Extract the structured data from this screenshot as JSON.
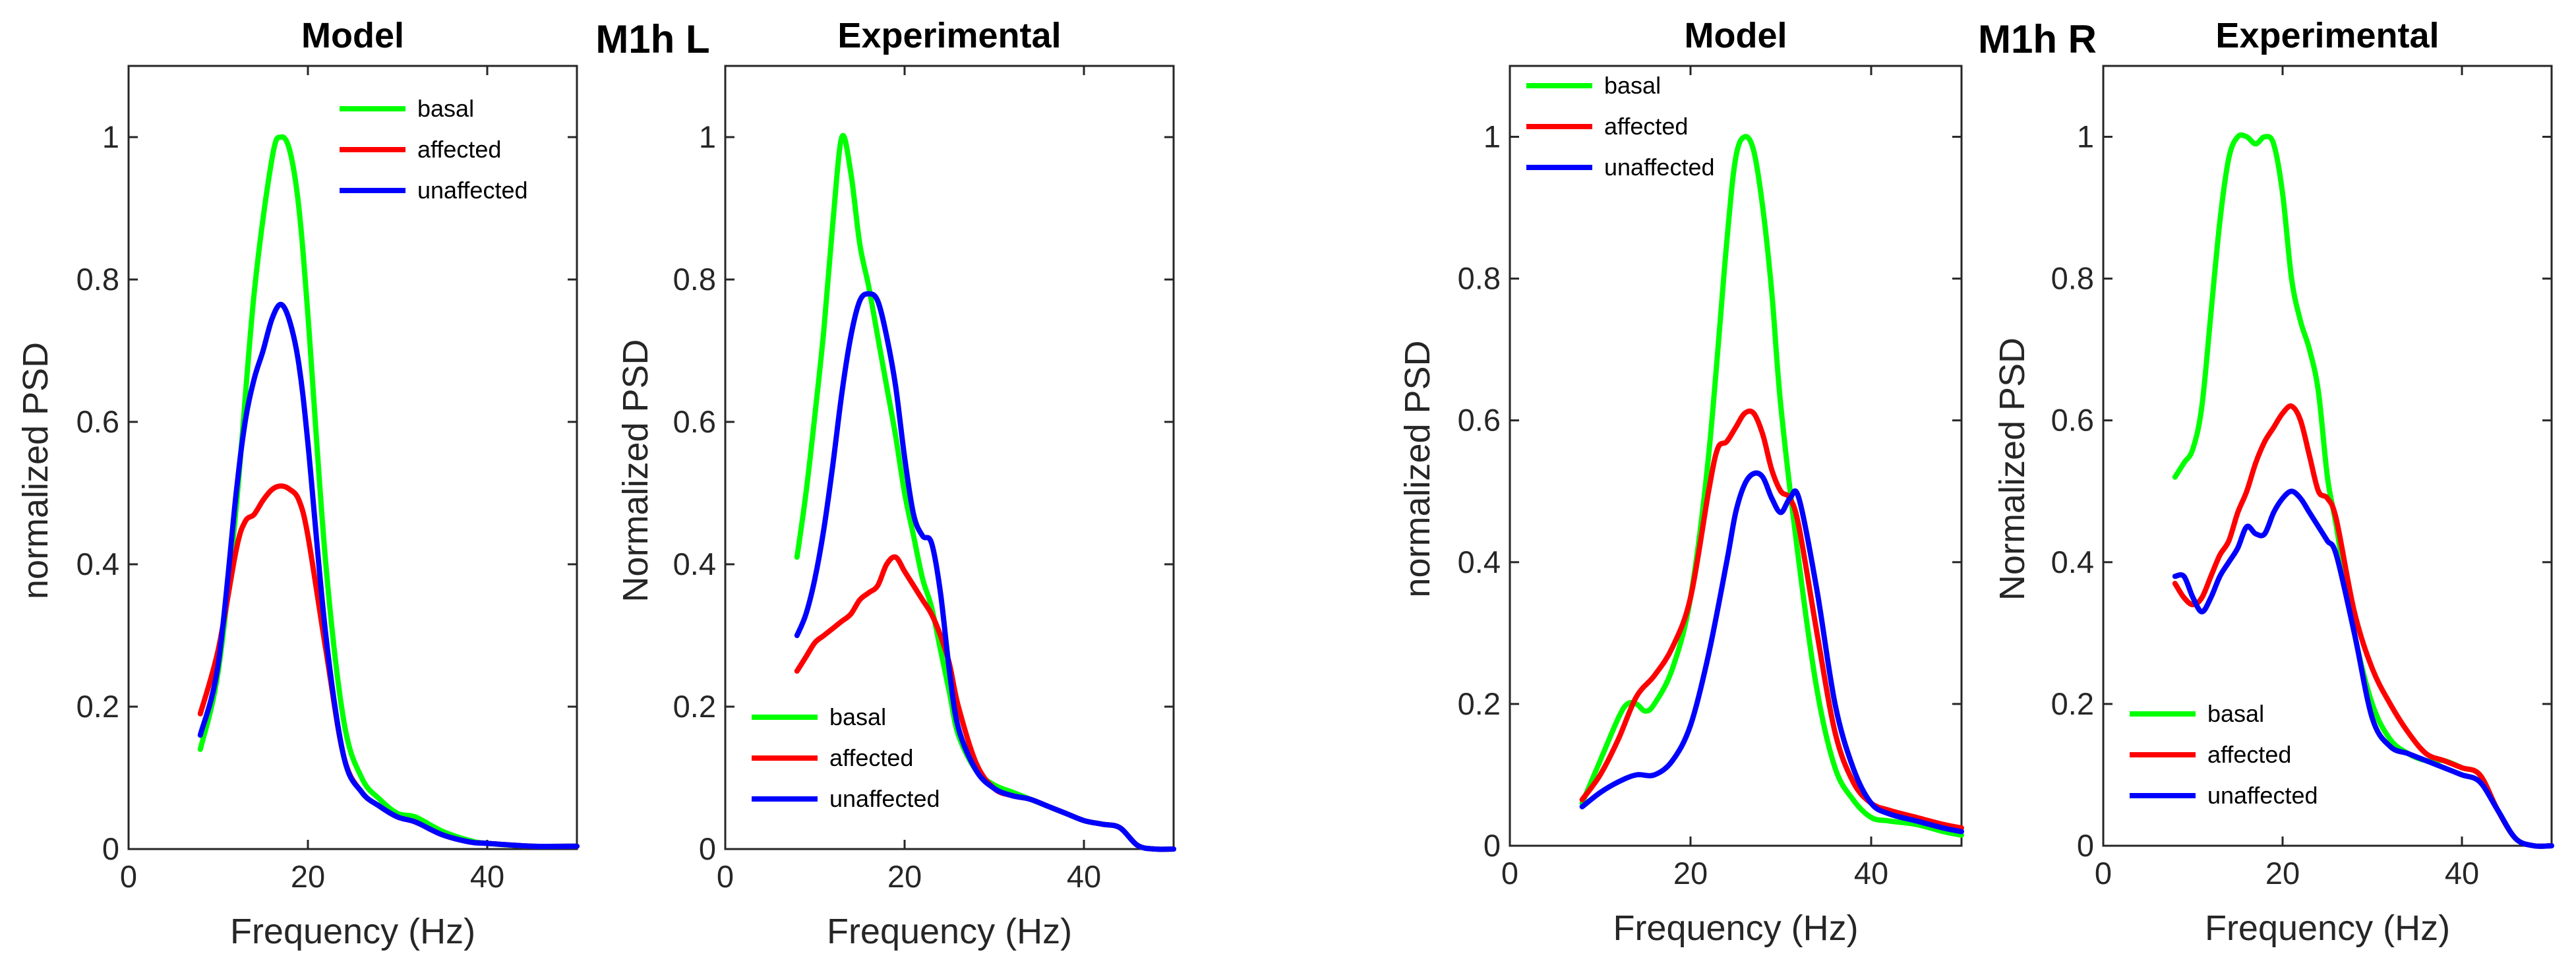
{
  "colors": {
    "basal": "#00ff00",
    "affected": "#ff0000",
    "unaffected": "#0000ff"
  },
  "group_titles": [
    {
      "text": "M1h L"
    },
    {
      "text": "M1h R"
    }
  ],
  "chart_data": [
    {
      "type": "line",
      "title": "Model",
      "xlabel": "Frequency (Hz)",
      "ylabel": "normalized PSD",
      "xlim": [
        0,
        50
      ],
      "ylim": [
        0,
        1.1
      ],
      "xticks": [
        "0",
        "20",
        "40"
      ],
      "yticks": [
        "0",
        "0.2",
        "0.4",
        "0.6",
        "0.8",
        "1"
      ],
      "legend_position": "top-right",
      "series": [
        {
          "name": "basal",
          "x": [
            8,
            10,
            12,
            14,
            16,
            17,
            18,
            19,
            20,
            22,
            24,
            26,
            28,
            30,
            32,
            35,
            38,
            40,
            45,
            50
          ],
          "y": [
            0.14,
            0.25,
            0.48,
            0.78,
            0.97,
            1.0,
            0.98,
            0.9,
            0.75,
            0.4,
            0.18,
            0.1,
            0.07,
            0.05,
            0.045,
            0.025,
            0.012,
            0.008,
            0.004,
            0.004
          ]
        },
        {
          "name": "affected",
          "x": [
            8,
            10,
            12,
            13,
            14,
            15,
            16,
            17,
            18,
            19,
            20,
            22,
            24,
            26,
            28,
            30,
            32,
            35,
            38,
            40,
            45,
            50
          ],
          "y": [
            0.19,
            0.28,
            0.42,
            0.46,
            0.47,
            0.49,
            0.505,
            0.51,
            0.505,
            0.49,
            0.44,
            0.28,
            0.13,
            0.08,
            0.06,
            0.045,
            0.038,
            0.02,
            0.01,
            0.008,
            0.004,
            0.004
          ]
        },
        {
          "name": "unaffected",
          "x": [
            8,
            10,
            12,
            13,
            14,
            15,
            16,
            17,
            18,
            19,
            20,
            22,
            24,
            26,
            28,
            30,
            32,
            35,
            38,
            40,
            45,
            50
          ],
          "y": [
            0.16,
            0.26,
            0.5,
            0.6,
            0.66,
            0.7,
            0.745,
            0.765,
            0.74,
            0.68,
            0.57,
            0.3,
            0.13,
            0.08,
            0.06,
            0.045,
            0.038,
            0.02,
            0.01,
            0.008,
            0.004,
            0.004
          ]
        }
      ]
    },
    {
      "type": "line",
      "title": "Experimental",
      "xlabel": "Frequency (Hz)",
      "ylabel": "Normalized PSD",
      "xlim": [
        0,
        50
      ],
      "ylim": [
        0,
        1.1
      ],
      "xticks": [
        "0",
        "20",
        "40"
      ],
      "yticks": [
        "0",
        "0.2",
        "0.4",
        "0.6",
        "0.8",
        "1"
      ],
      "legend_position": "bottom-left",
      "series": [
        {
          "name": "basal",
          "x": [
            8,
            9,
            10,
            11,
            12,
            13,
            14,
            15,
            16,
            17,
            18,
            19,
            20,
            21,
            22,
            23,
            24,
            25,
            26,
            28,
            30,
            32,
            34,
            36,
            38,
            40,
            42,
            44,
            46,
            48,
            50
          ],
          "y": [
            0.41,
            0.5,
            0.61,
            0.73,
            0.88,
            1.0,
            0.95,
            0.85,
            0.79,
            0.72,
            0.65,
            0.58,
            0.5,
            0.44,
            0.38,
            0.34,
            0.28,
            0.22,
            0.16,
            0.11,
            0.09,
            0.08,
            0.07,
            0.06,
            0.05,
            0.04,
            0.035,
            0.03,
            0.005,
            0.0,
            0.0
          ]
        },
        {
          "name": "affected",
          "x": [
            8,
            9,
            10,
            11,
            12,
            13,
            14,
            15,
            16,
            17,
            18,
            19,
            20,
            21,
            22,
            23,
            24,
            25,
            26,
            28,
            30,
            32,
            34,
            36,
            38,
            40,
            42,
            44,
            46,
            48,
            50
          ],
          "y": [
            0.25,
            0.27,
            0.29,
            0.3,
            0.31,
            0.32,
            0.33,
            0.35,
            0.36,
            0.37,
            0.4,
            0.41,
            0.39,
            0.37,
            0.35,
            0.33,
            0.3,
            0.26,
            0.2,
            0.12,
            0.085,
            0.075,
            0.07,
            0.06,
            0.05,
            0.04,
            0.035,
            0.03,
            0.005,
            0.0,
            0.0
          ]
        },
        {
          "name": "unaffected",
          "x": [
            8,
            9,
            10,
            11,
            12,
            13,
            14,
            15,
            16,
            17,
            18,
            19,
            20,
            21,
            22,
            23,
            24,
            25,
            26,
            28,
            30,
            32,
            34,
            36,
            38,
            40,
            42,
            44,
            46,
            48,
            50
          ],
          "y": [
            0.3,
            0.33,
            0.38,
            0.45,
            0.54,
            0.64,
            0.72,
            0.77,
            0.78,
            0.77,
            0.72,
            0.65,
            0.55,
            0.47,
            0.44,
            0.43,
            0.36,
            0.25,
            0.17,
            0.11,
            0.085,
            0.075,
            0.07,
            0.06,
            0.05,
            0.04,
            0.035,
            0.03,
            0.005,
            0.0,
            0.0
          ]
        }
      ]
    },
    {
      "type": "line",
      "title": "Model",
      "xlabel": "Frequency (Hz)",
      "ylabel": "normalized PSD",
      "xlim": [
        0,
        50
      ],
      "ylim": [
        0,
        1.1
      ],
      "xticks": [
        "0",
        "20",
        "40"
      ],
      "yticks": [
        "0",
        "0.2",
        "0.4",
        "0.6",
        "0.8",
        "1"
      ],
      "legend_position": "top-left",
      "series": [
        {
          "name": "basal",
          "x": [
            8,
            10,
            12,
            13,
            14,
            15,
            16,
            18,
            20,
            22,
            24,
            25,
            26,
            27,
            28,
            29,
            30,
            32,
            34,
            36,
            38,
            40,
            42,
            45,
            48,
            50
          ],
          "y": [
            0.06,
            0.12,
            0.18,
            0.2,
            0.2,
            0.19,
            0.2,
            0.25,
            0.35,
            0.55,
            0.85,
            0.97,
            1.0,
            0.98,
            0.9,
            0.78,
            0.62,
            0.4,
            0.22,
            0.11,
            0.065,
            0.04,
            0.035,
            0.03,
            0.02,
            0.015
          ]
        },
        {
          "name": "affected",
          "x": [
            8,
            10,
            12,
            14,
            16,
            18,
            20,
            22,
            23,
            24,
            25,
            26,
            27,
            28,
            29,
            30,
            31,
            32,
            34,
            36,
            38,
            40,
            42,
            45,
            48,
            50
          ],
          "y": [
            0.065,
            0.1,
            0.15,
            0.21,
            0.24,
            0.28,
            0.35,
            0.5,
            0.56,
            0.57,
            0.59,
            0.61,
            0.61,
            0.58,
            0.53,
            0.5,
            0.49,
            0.45,
            0.3,
            0.16,
            0.09,
            0.06,
            0.05,
            0.04,
            0.03,
            0.025
          ]
        },
        {
          "name": "unaffected",
          "x": [
            8,
            10,
            12,
            14,
            16,
            18,
            20,
            22,
            24,
            25,
            26,
            27,
            28,
            29,
            30,
            31,
            32,
            34,
            36,
            38,
            40,
            42,
            45,
            48,
            50
          ],
          "y": [
            0.055,
            0.075,
            0.09,
            0.1,
            0.1,
            0.12,
            0.17,
            0.27,
            0.4,
            0.47,
            0.51,
            0.525,
            0.52,
            0.49,
            0.47,
            0.49,
            0.49,
            0.36,
            0.2,
            0.11,
            0.06,
            0.045,
            0.035,
            0.025,
            0.02
          ]
        }
      ]
    },
    {
      "type": "line",
      "title": "Experimental",
      "xlabel": "Frequency (Hz)",
      "ylabel": "Normalized PSD",
      "xlim": [
        0,
        50
      ],
      "ylim": [
        0,
        1.1
      ],
      "xticks": [
        "0",
        "20",
        "40"
      ],
      "yticks": [
        "0",
        "0.2",
        "0.4",
        "0.6",
        "0.8",
        "1"
      ],
      "legend_position": "bottom-left",
      "series": [
        {
          "name": "basal",
          "x": [
            8,
            9,
            10,
            11,
            12,
            13,
            14,
            15,
            16,
            17,
            18,
            19,
            20,
            21,
            22,
            23,
            24,
            25,
            26,
            28,
            30,
            32,
            34,
            36,
            38,
            40,
            42,
            44,
            46,
            48,
            50
          ],
          "y": [
            0.52,
            0.54,
            0.56,
            0.62,
            0.75,
            0.88,
            0.97,
            1.0,
            1.0,
            0.99,
            1.0,
            0.99,
            0.92,
            0.8,
            0.74,
            0.7,
            0.64,
            0.52,
            0.45,
            0.3,
            0.2,
            0.15,
            0.13,
            0.12,
            0.12,
            0.11,
            0.1,
            0.05,
            0.01,
            0.0,
            0.0
          ]
        },
        {
          "name": "affected",
          "x": [
            8,
            9,
            10,
            11,
            12,
            13,
            14,
            15,
            16,
            17,
            18,
            19,
            20,
            21,
            22,
            23,
            24,
            25,
            26,
            28,
            30,
            32,
            34,
            36,
            38,
            40,
            42,
            44,
            46,
            48,
            50
          ],
          "y": [
            0.37,
            0.35,
            0.34,
            0.35,
            0.38,
            0.41,
            0.43,
            0.47,
            0.5,
            0.54,
            0.57,
            0.59,
            0.61,
            0.62,
            0.6,
            0.55,
            0.5,
            0.49,
            0.46,
            0.33,
            0.25,
            0.2,
            0.16,
            0.13,
            0.12,
            0.11,
            0.1,
            0.05,
            0.01,
            0.0,
            0.0
          ]
        },
        {
          "name": "unaffected",
          "x": [
            8,
            9,
            10,
            11,
            12,
            13,
            14,
            15,
            16,
            17,
            18,
            19,
            20,
            21,
            22,
            23,
            24,
            25,
            26,
            28,
            30,
            32,
            34,
            36,
            38,
            40,
            42,
            44,
            46,
            48,
            50
          ],
          "y": [
            0.38,
            0.38,
            0.35,
            0.33,
            0.35,
            0.38,
            0.4,
            0.42,
            0.45,
            0.44,
            0.44,
            0.47,
            0.49,
            0.5,
            0.49,
            0.47,
            0.45,
            0.43,
            0.41,
            0.3,
            0.18,
            0.14,
            0.13,
            0.12,
            0.11,
            0.1,
            0.09,
            0.05,
            0.01,
            0.0,
            0.0
          ]
        }
      ]
    }
  ]
}
